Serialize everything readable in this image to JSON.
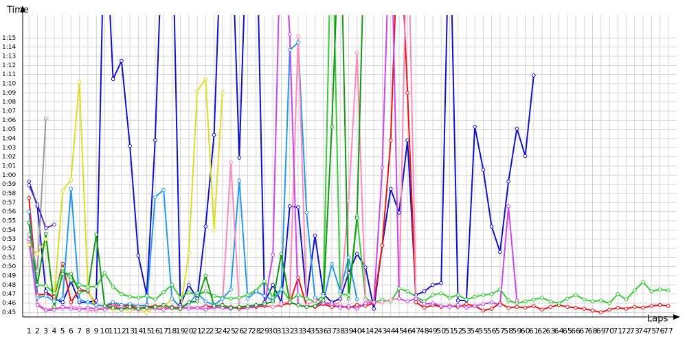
{
  "chart_data": {
    "type": "line",
    "y_label": "Time",
    "x_label": "Laps",
    "x": [
      1,
      2,
      3,
      4,
      5,
      6,
      7,
      8,
      9,
      10,
      11,
      12,
      13,
      14,
      15,
      16,
      17,
      18,
      19,
      20,
      21,
      22,
      23,
      24,
      25,
      26,
      27,
      28,
      29,
      30,
      31,
      32,
      33,
      34,
      35,
      36,
      37,
      38,
      39,
      40,
      41,
      42,
      43,
      44,
      45,
      46,
      47,
      48,
      49,
      50,
      51,
      52,
      53,
      54,
      55,
      56,
      57,
      58,
      59,
      60,
      61,
      62,
      63,
      64,
      65,
      66,
      67,
      68,
      69,
      70,
      71,
      72,
      73,
      74,
      75,
      76,
      77
    ],
    "xlim": [
      0.25,
      78
    ],
    "ylim": [
      44.5,
      77.5
    ],
    "yticks": [
      {
        "value": 45,
        "label": "0:45"
      },
      {
        "value": 46,
        "label": "0:46"
      },
      {
        "value": 47,
        "label": "0:47"
      },
      {
        "value": 48,
        "label": "0:48"
      },
      {
        "value": 49,
        "label": "0:49"
      },
      {
        "value": 50,
        "label": "0:50"
      },
      {
        "value": 51,
        "label": "0:51"
      },
      {
        "value": 52,
        "label": "0:52"
      },
      {
        "value": 53,
        "label": "0:53"
      },
      {
        "value": 54,
        "label": "0:54"
      },
      {
        "value": 55,
        "label": "0:55"
      },
      {
        "value": 56,
        "label": "0:56"
      },
      {
        "value": 57,
        "label": "0:57"
      },
      {
        "value": 58,
        "label": "0:58"
      },
      {
        "value": 59,
        "label": "0:59"
      },
      {
        "value": 60,
        "label": "1:00"
      },
      {
        "value": 61,
        "label": "1:01"
      },
      {
        "value": 62,
        "label": "1:02"
      },
      {
        "value": 63,
        "label": "1:03"
      },
      {
        "value": 64,
        "label": "1:04"
      },
      {
        "value": 65,
        "label": "1:05"
      },
      {
        "value": 66,
        "label": "1:06"
      },
      {
        "value": 67,
        "label": "1:07"
      },
      {
        "value": 68,
        "label": "1:08"
      },
      {
        "value": 69,
        "label": "1:09"
      },
      {
        "value": 70,
        "label": "1:10"
      },
      {
        "value": 71,
        "label": "1:11"
      },
      {
        "value": 72,
        "label": "1:12"
      },
      {
        "value": 73,
        "label": "1:13"
      },
      {
        "value": 74,
        "label": "1:14"
      },
      {
        "value": 75,
        "label": "1:15"
      }
    ],
    "grid": true,
    "series": [
      {
        "color": "#1010cc",
        "values": [
          59.3,
          56.6,
          47.3,
          46.5,
          46.1,
          48.4,
          46.1,
          46.1,
          46.3,
          90,
          70.5,
          72.5,
          63.2,
          51.2,
          46.9,
          63.8,
          90,
          90,
          45.8,
          48,
          46.5,
          54.4,
          64.4,
          90,
          90,
          61.9,
          90,
          90,
          46.1,
          48,
          46.1,
          56.6,
          56.5,
          46.5,
          53.4,
          47,
          46.1,
          46.5,
          49.3,
          51.4,
          49.9,
          45.4,
          52.3,
          58.5,
          55.9,
          63.8,
          46.9,
          47.3,
          48,
          48.2,
          90,
          46.3,
          46.3,
          65.3,
          60.6,
          54.4,
          51.6,
          59.3,
          65.1,
          62.1,
          70.9,
          null,
          null,
          null,
          null,
          null,
          null,
          null,
          null,
          null,
          null,
          null,
          null,
          null,
          null,
          null,
          null
        ]
      },
      {
        "color": "#ee1111",
        "values": [
          57.5,
          46.9,
          47,
          46.7,
          50.3,
          46.1,
          47.5,
          47.3,
          45.8,
          45.7,
          45.9,
          45.6,
          45.8,
          45.5,
          45.6,
          45.7,
          45.5,
          45.6,
          45.4,
          45.6,
          45.5,
          45.7,
          45.6,
          45.5,
          45.6,
          45.4,
          45.5,
          45.6,
          45.7,
          45.6,
          45.8,
          46,
          48.8,
          45.7,
          45.6,
          45.9,
          45.6,
          45.7,
          45.5,
          45.8,
          45.7,
          46,
          52.3,
          63.8,
          90,
          69,
          46.1,
          45.5,
          45.8,
          45.6,
          45.7,
          45.6,
          45.9,
          45.7,
          45.2,
          45.4,
          46,
          45.5,
          45.6,
          45.5,
          45.7,
          45.3,
          45.6,
          45.8,
          45.6,
          45.5,
          45.4,
          45.2,
          45,
          45.3,
          45.5,
          45.4,
          45.6,
          45.5,
          45.7,
          45.8,
          45.7
        ]
      },
      {
        "color": "#33cc33",
        "values": [
          52.5,
          48,
          47.9,
          47.1,
          49.8,
          48.5,
          48,
          47.8,
          47.8,
          49.3,
          47.8,
          47,
          46.7,
          46.6,
          46.8,
          46.4,
          47.2,
          48,
          46.6,
          47.2,
          46.9,
          47.3,
          46.8,
          46.6,
          46.5,
          46.6,
          46.9,
          47.4,
          48.4,
          46.6,
          47.6,
          46.3,
          46.9,
          46.5,
          46.2,
          46.8,
          90,
          47,
          46.9,
          55.5,
          46.5,
          46.1,
          46.4,
          46.2,
          47.6,
          47.3,
          46.7,
          46.2,
          46.9,
          47.1,
          46.6,
          46.9,
          46.4,
          46.7,
          46.9,
          47,
          47.5,
          46.3,
          46,
          46.2,
          46.4,
          46.6,
          46.2,
          46,
          46.5,
          46.9,
          46.4,
          46.2,
          46.3,
          46,
          47,
          46.4,
          47.4,
          48.3,
          47.3,
          47.5,
          47.4
        ]
      },
      {
        "color": "#dddd22",
        "values": [
          52.4,
          51.4,
          53,
          46.3,
          58.3,
          59.5,
          70.2,
          47.5,
          45.4,
          45.5,
          45.3,
          45.4,
          45.2,
          45.3,
          45,
          45.6,
          45.4,
          46.6,
          45.3,
          51.5,
          69.2,
          70.5,
          54,
          69,
          null,
          null,
          null,
          null,
          null,
          null,
          null,
          null,
          null,
          null,
          null,
          null,
          null,
          null,
          null,
          null,
          null,
          null,
          null,
          null,
          null,
          null,
          null,
          null,
          null,
          null,
          null,
          null,
          null,
          null,
          null,
          null,
          null,
          null,
          null,
          null,
          null,
          null,
          null,
          null,
          null,
          null,
          null,
          null,
          null,
          null,
          null,
          null,
          null,
          null,
          null,
          null,
          null
        ]
      },
      {
        "color": "#2299ee",
        "values": [
          56,
          46.6,
          46.8,
          46.2,
          46.5,
          58.5,
          46.4,
          46.1,
          45.8,
          45.7,
          46.1,
          45.8,
          45.9,
          45.7,
          45.8,
          57.6,
          58.4,
          46.5,
          45.6,
          45.9,
          47.1,
          46.2,
          45.8,
          46.5,
          47.5,
          59.4,
          46.5,
          47.3,
          46.8,
          46.3,
          47.5,
          73.7,
          74.5,
          55.9,
          46.6,
          46.1,
          50.3,
          47.3,
          51,
          46.4,
          null,
          null,
          null,
          null,
          null,
          null,
          null,
          null,
          null,
          null,
          null,
          null,
          null,
          null,
          null,
          null,
          null,
          null,
          null,
          null,
          null,
          null,
          null,
          null,
          null,
          null,
          null,
          null,
          null,
          null,
          null,
          null,
          null,
          null,
          null,
          null,
          null
        ]
      },
      {
        "color": "#ff88bb",
        "values": [
          52.8,
          46,
          45.3,
          45.5,
          45.4,
          45.6,
          45.5,
          45.2,
          45.2,
          45.5,
          45.7,
          45.6,
          45.5,
          45.6,
          45.4,
          45.5,
          45.7,
          45.4,
          45.3,
          45.6,
          45.5,
          45.6,
          45.4,
          45.7,
          61.4,
          45.6,
          45.5,
          45.7,
          45.8,
          45.6,
          45.9,
          46.2,
          75.2,
          45.8,
          46.3,
          46.2,
          45.9,
          46,
          57.2,
          73.4,
          46.3,
          46.1,
          46.1,
          46.4,
          46.5,
          90,
          46.7,
          null,
          null,
          null,
          null,
          null,
          null,
          null,
          null,
          null,
          null,
          null,
          null,
          null,
          null,
          null,
          null,
          null,
          null,
          null,
          null,
          null,
          null,
          null,
          null,
          null,
          null,
          null,
          null,
          null,
          null
        ]
      },
      {
        "color": "#cc44ee",
        "values": [
          53,
          45.8,
          45.2,
          45.3,
          45.6,
          45.4,
          45.3,
          45.5,
          45.4,
          45.3,
          45.6,
          45.4,
          45.5,
          45.3,
          45.6,
          45.4,
          45.3,
          45.5,
          45.6,
          45.4,
          45.5,
          45.3,
          45.6,
          45.5,
          45.4,
          45.6,
          45.5,
          45.7,
          45.8,
          51.3,
          90,
          75.4,
          45.8,
          45.6,
          45.7,
          46,
          45.9,
          45.5,
          45.7,
          45.4,
          46,
          46.1,
          60.8,
          90,
          46.5,
          46.2,
          46.5,
          45.9,
          46,
          45.7,
          45.6,
          45.8,
          45.5,
          45.7,
          45.9,
          46.1,
          45.8,
          56.6,
          46.3,
          null,
          null,
          null,
          null,
          null,
          null,
          null,
          null,
          null,
          null,
          null,
          null,
          null,
          null,
          null,
          null,
          null,
          null
        ]
      },
      {
        "color": "#119911",
        "values": [
          54.8,
          48,
          53.6,
          45.6,
          49.2,
          49.2,
          47.2,
          47.4,
          53.5,
          45.7,
          45.5,
          45.3,
          45.6,
          45.4,
          45.5,
          45.6,
          45.8,
          45.5,
          45.4,
          46.1,
          46.2,
          49,
          45.7,
          45.8,
          45.5,
          45.6,
          45.7,
          45.8,
          45.9,
          46.2,
          51.4,
          46.1,
          45.8,
          45.6,
          45.7,
          46.3,
          65.3,
          90,
          46.5,
          55.3,
          90,
          null,
          null,
          null,
          null,
          null,
          null,
          null,
          null,
          null,
          null,
          null,
          null,
          null,
          null,
          null,
          null,
          null,
          null,
          null,
          null,
          null,
          null,
          null,
          null,
          null,
          null,
          null,
          null,
          null,
          null,
          null,
          null,
          null,
          null,
          null,
          null
        ]
      },
      {
        "color": "#999999",
        "values": [
          53.5,
          49.5,
          66.2,
          null,
          null,
          null,
          null,
          null,
          null,
          null,
          null,
          null,
          null,
          null,
          null,
          null,
          null,
          null,
          null,
          null,
          null,
          null,
          null,
          null,
          null,
          null,
          null,
          null,
          null,
          null,
          null,
          null,
          null,
          null,
          null,
          null,
          null,
          null,
          null,
          null,
          null,
          null,
          null,
          null,
          null,
          null,
          null,
          null,
          null,
          null,
          null,
          null,
          null,
          null,
          null,
          null,
          null,
          null,
          null,
          null,
          null,
          null,
          null,
          null,
          null,
          null,
          null,
          null,
          null,
          null,
          null,
          null,
          null,
          null,
          null,
          null,
          null
        ]
      },
      {
        "color": "#5533bb",
        "values": [
          58.9,
          56.8,
          54.2,
          54.6,
          null,
          null,
          null,
          null,
          null,
          null,
          null,
          null,
          null,
          null,
          null,
          null,
          null,
          null,
          null,
          null,
          null,
          null,
          null,
          null,
          null,
          null,
          null,
          null,
          null,
          null,
          null,
          null,
          null,
          null,
          null,
          null,
          null,
          null,
          null,
          null,
          null,
          null,
          null,
          null,
          null,
          null,
          null,
          null,
          null,
          null,
          null,
          null,
          null,
          null,
          null,
          null,
          null,
          null,
          null,
          null,
          null,
          null,
          null,
          null,
          null,
          null,
          null,
          null,
          null,
          null,
          null,
          null,
          null,
          null,
          null,
          null,
          null
        ]
      }
    ]
  }
}
